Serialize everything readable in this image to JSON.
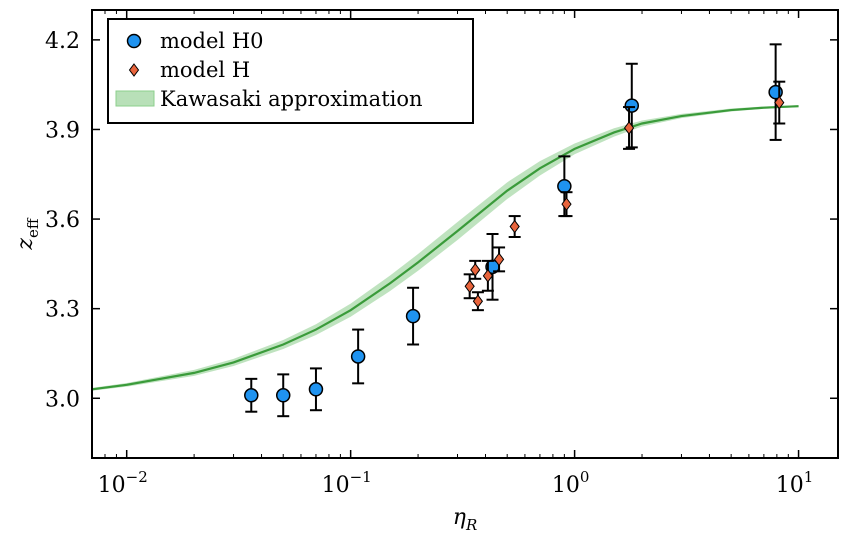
{
  "chart_data": {
    "type": "scatter",
    "x_scale": "log",
    "xlim": [
      0.007,
      15
    ],
    "ylim": [
      2.8,
      4.3
    ],
    "xlabel_main": "η",
    "xlabel_sub": "R",
    "ylabel_main": "z",
    "ylabel_sub": "eff",
    "x_ticks": [
      {
        "value": 0.01,
        "mantissa": "10",
        "exp": "−2"
      },
      {
        "value": 0.1,
        "mantissa": "10",
        "exp": "−1"
      },
      {
        "value": 1,
        "mantissa": "10",
        "exp": "0"
      },
      {
        "value": 10,
        "mantissa": "10",
        "exp": "1"
      }
    ],
    "y_ticks": [
      {
        "value": 3.0,
        "label": "3.0"
      },
      {
        "value": 3.3,
        "label": "3.3"
      },
      {
        "value": 3.6,
        "label": "3.6"
      },
      {
        "value": 3.9,
        "label": "3.9"
      },
      {
        "value": 4.2,
        "label": "4.2"
      }
    ],
    "grid": false,
    "legend_position": "top-left",
    "series": [
      {
        "name": "model H0",
        "kind": "errorbar-circle",
        "color": "#1f93f0",
        "points": [
          {
            "x": 0.036,
            "y": 3.01,
            "err": 0.055
          },
          {
            "x": 0.05,
            "y": 3.01,
            "err": 0.07
          },
          {
            "x": 0.07,
            "y": 3.03,
            "err": 0.07
          },
          {
            "x": 0.108,
            "y": 3.14,
            "err": 0.09
          },
          {
            "x": 0.19,
            "y": 3.275,
            "err": 0.095
          },
          {
            "x": 0.43,
            "y": 3.44,
            "err": 0.11
          },
          {
            "x": 0.9,
            "y": 3.71,
            "err": 0.1
          },
          {
            "x": 1.8,
            "y": 3.98,
            "err": 0.14
          },
          {
            "x": 7.9,
            "y": 4.025,
            "err": 0.16
          }
        ]
      },
      {
        "name": "model H",
        "kind": "errorbar-diamond",
        "color": "#e8643c",
        "points": [
          {
            "x": 0.34,
            "y": 3.375,
            "err": 0.04
          },
          {
            "x": 0.36,
            "y": 3.43,
            "err": 0.03
          },
          {
            "x": 0.37,
            "y": 3.325,
            "err": 0.03
          },
          {
            "x": 0.41,
            "y": 3.41,
            "err": 0.05
          },
          {
            "x": 0.46,
            "y": 3.465,
            "err": 0.04
          },
          {
            "x": 0.54,
            "y": 3.575,
            "err": 0.035
          },
          {
            "x": 0.92,
            "y": 3.65,
            "err": 0.04
          },
          {
            "x": 1.75,
            "y": 3.905,
            "err": 0.07
          },
          {
            "x": 8.2,
            "y": 3.99,
            "err": 0.07
          }
        ]
      },
      {
        "name": "Kawasaki approximation",
        "kind": "line-band",
        "color": "#3a9b3a",
        "band_color": "#b8e0b8",
        "x": [
          0.007,
          0.01,
          0.02,
          0.03,
          0.05,
          0.07,
          0.1,
          0.15,
          0.2,
          0.3,
          0.5,
          0.7,
          1.0,
          1.5,
          2.0,
          3.0,
          5.0,
          7.0,
          10.0
        ],
        "y": [
          3.03,
          3.045,
          3.085,
          3.12,
          3.18,
          3.23,
          3.295,
          3.385,
          3.455,
          3.56,
          3.695,
          3.77,
          3.835,
          3.89,
          3.92,
          3.945,
          3.965,
          3.973,
          3.978
        ],
        "band_half": [
          0.005,
          0.006,
          0.01,
          0.012,
          0.015,
          0.018,
          0.022,
          0.026,
          0.028,
          0.03,
          0.028,
          0.024,
          0.018,
          0.014,
          0.01,
          0.007,
          0.005,
          0.004,
          0.003
        ]
      }
    ]
  }
}
